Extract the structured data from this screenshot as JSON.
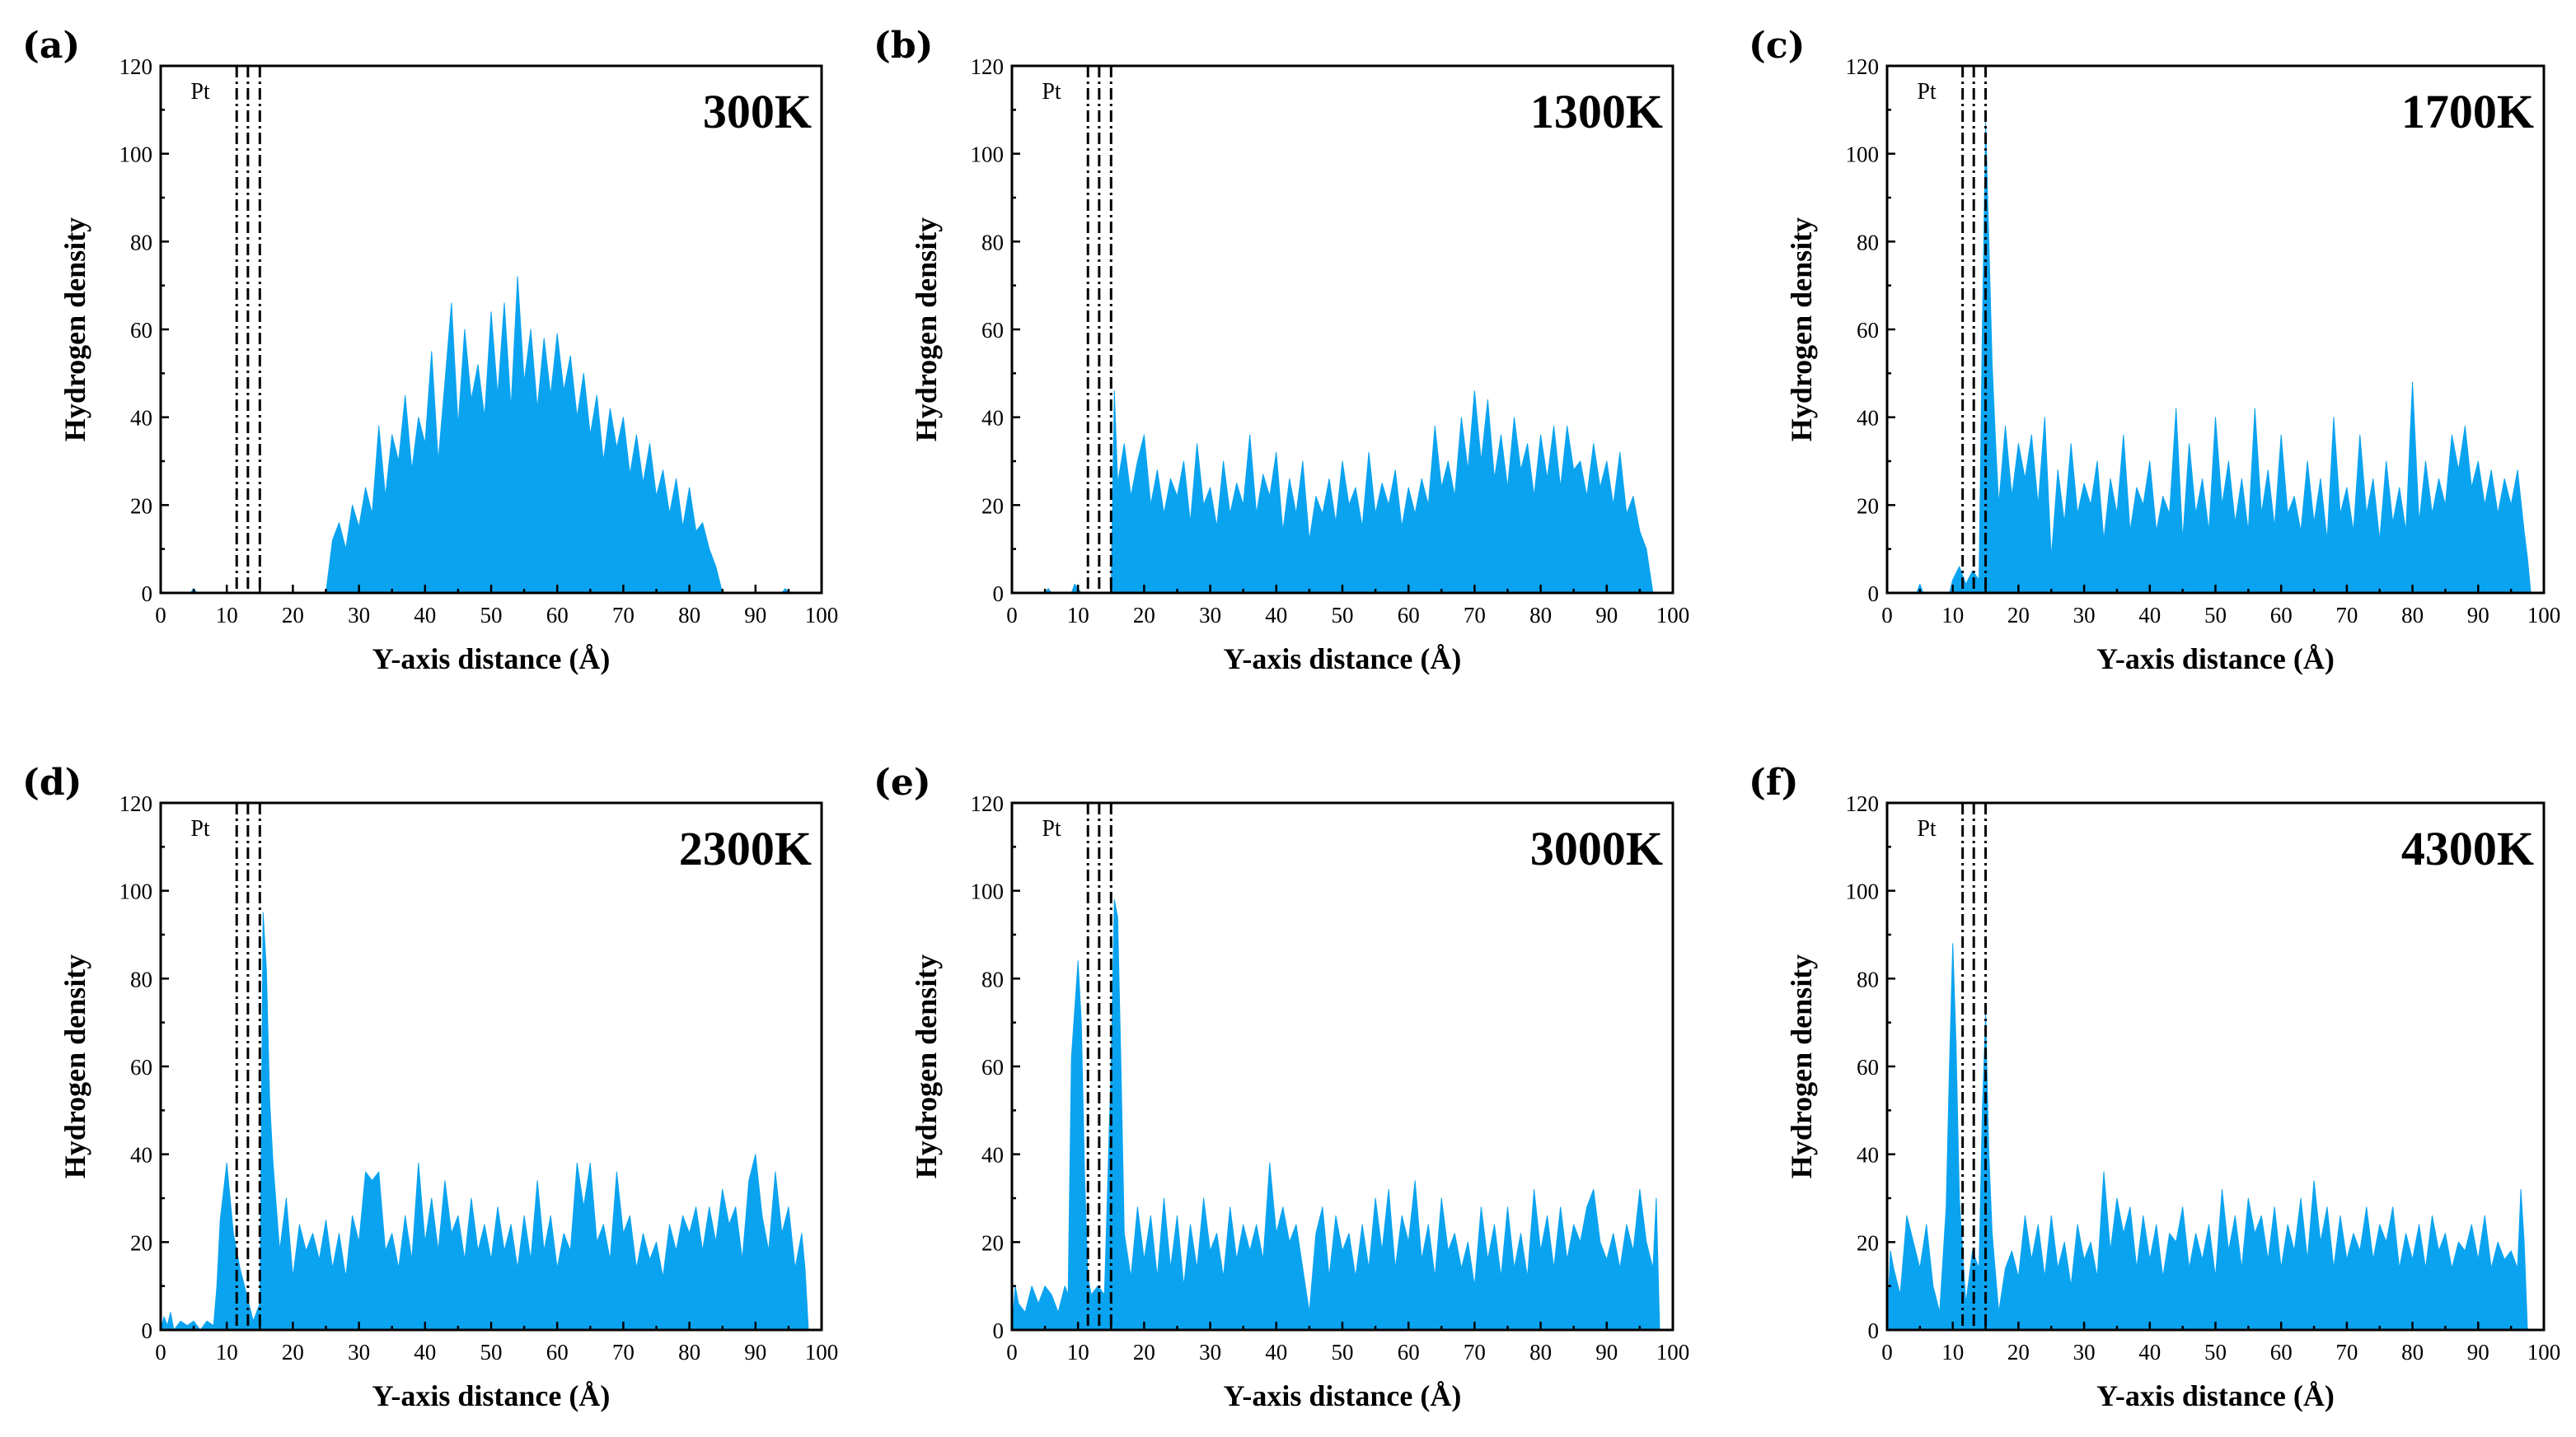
{
  "chart_data": [
    {
      "type": "area",
      "panel": "(a)",
      "temperature": "300K",
      "xlabel": "Y-axis distance (Å)",
      "ylabel": "Hydrogen density",
      "xlim": [
        0,
        100
      ],
      "ylim": [
        0,
        120
      ],
      "xticks": [
        0,
        10,
        20,
        30,
        40,
        50,
        60,
        70,
        80,
        90,
        100
      ],
      "yticks": [
        0,
        20,
        40,
        60,
        80,
        100,
        120
      ],
      "pt_label": "Pt",
      "pt_lines": [
        11.5,
        13.2,
        15
      ],
      "x": [
        0,
        4.5,
        5,
        5.5,
        10,
        25,
        26,
        27,
        28,
        29,
        30,
        31,
        32,
        33,
        34,
        35,
        36,
        37,
        38,
        39,
        40,
        41,
        42,
        43,
        44,
        45,
        46,
        47,
        48,
        49,
        50,
        51,
        52,
        53,
        54,
        55,
        56,
        57,
        58,
        59,
        60,
        61,
        62,
        63,
        64,
        65,
        66,
        67,
        68,
        69,
        70,
        71,
        72,
        73,
        74,
        75,
        76,
        77,
        78,
        79,
        80,
        81,
        82,
        83,
        84,
        85,
        90,
        94,
        94.5,
        95,
        100
      ],
      "values": [
        0,
        0,
        1,
        0,
        0,
        0,
        12,
        16,
        10,
        20,
        15,
        24,
        18,
        38,
        22,
        36,
        30,
        45,
        28,
        40,
        34,
        55,
        30,
        48,
        66,
        38,
        60,
        44,
        52,
        40,
        64,
        45,
        66,
        42,
        72,
        48,
        60,
        42,
        58,
        45,
        59,
        46,
        54,
        40,
        50,
        36,
        45,
        30,
        42,
        33,
        40,
        27,
        36,
        25,
        34,
        22,
        28,
        18,
        26,
        15,
        24,
        14,
        16,
        10,
        6,
        0,
        0,
        0,
        1,
        0,
        0
      ]
    },
    {
      "type": "area",
      "panel": "(b)",
      "temperature": "1300K",
      "xlabel": "Y-axis distance  (Å)",
      "ylabel": "Hydrogen density",
      "xlim": [
        0,
        100
      ],
      "ylim": [
        0,
        120
      ],
      "xticks": [
        0,
        10,
        20,
        30,
        40,
        50,
        60,
        70,
        80,
        90,
        100
      ],
      "yticks": [
        0,
        20,
        40,
        60,
        80,
        100,
        120
      ],
      "pt_label": "Pt",
      "pt_lines": [
        11.5,
        13.2,
        15
      ],
      "x": [
        0,
        5,
        5.5,
        6,
        9,
        9.5,
        10,
        10.5,
        15,
        15.5,
        16,
        17,
        18,
        19,
        20,
        21,
        22,
        23,
        24,
        25,
        26,
        27,
        28,
        29,
        30,
        31,
        32,
        33,
        34,
        35,
        36,
        37,
        38,
        39,
        40,
        41,
        42,
        43,
        44,
        45,
        46,
        47,
        48,
        49,
        50,
        51,
        52,
        53,
        54,
        55,
        56,
        57,
        58,
        59,
        60,
        61,
        62,
        63,
        64,
        65,
        66,
        67,
        68,
        69,
        70,
        71,
        72,
        73,
        74,
        75,
        76,
        77,
        78,
        79,
        80,
        81,
        82,
        83,
        84,
        85,
        86,
        87,
        88,
        89,
        90,
        91,
        92,
        93,
        94,
        95,
        96,
        97
      ],
      "values": [
        0,
        0,
        1,
        0,
        0,
        2,
        1,
        0,
        0,
        46,
        25,
        34,
        22,
        30,
        36,
        20,
        28,
        18,
        26,
        22,
        30,
        16,
        34,
        20,
        24,
        15,
        30,
        18,
        25,
        20,
        36,
        18,
        27,
        22,
        32,
        14,
        26,
        18,
        30,
        12,
        22,
        18,
        26,
        16,
        30,
        20,
        24,
        15,
        32,
        18,
        25,
        20,
        28,
        15,
        24,
        18,
        26,
        20,
        38,
        24,
        30,
        22,
        40,
        28,
        46,
        30,
        44,
        26,
        36,
        24,
        40,
        28,
        34,
        22,
        36,
        26,
        38,
        24,
        38,
        28,
        30,
        22,
        34,
        24,
        30,
        20,
        32,
        18,
        22,
        14,
        10,
        0
      ]
    },
    {
      "type": "area",
      "panel": "(c)",
      "temperature": "1700K",
      "xlabel": "Y-axis distance (Å)",
      "ylabel": "Hydrogen density",
      "xlim": [
        0,
        100
      ],
      "ylim": [
        0,
        120
      ],
      "xticks": [
        0,
        10,
        20,
        30,
        40,
        50,
        60,
        70,
        80,
        90,
        100
      ],
      "yticks": [
        0,
        20,
        40,
        60,
        80,
        100,
        120
      ],
      "pt_label": "Pt",
      "pt_lines": [
        11.5,
        13.2,
        15
      ],
      "x": [
        0,
        4.5,
        5,
        5.5,
        9.5,
        10,
        11,
        12,
        13,
        14,
        14.5,
        15,
        15.5,
        16,
        16.5,
        17,
        18,
        19,
        20,
        21,
        22,
        23,
        24,
        25,
        26,
        27,
        28,
        29,
        30,
        31,
        32,
        33,
        34,
        35,
        36,
        37,
        38,
        39,
        40,
        41,
        42,
        43,
        44,
        45,
        46,
        47,
        48,
        49,
        50,
        51,
        52,
        53,
        54,
        55,
        56,
        57,
        58,
        59,
        60,
        61,
        62,
        63,
        64,
        65,
        66,
        67,
        68,
        69,
        70,
        71,
        72,
        73,
        74,
        75,
        76,
        77,
        78,
        79,
        80,
        81,
        82,
        83,
        84,
        85,
        86,
        87,
        88,
        89,
        90,
        91,
        92,
        93,
        94,
        95,
        96,
        97,
        97.5,
        98
      ],
      "values": [
        0,
        0,
        2,
        0,
        0,
        3,
        6,
        2,
        5,
        3,
        60,
        107,
        80,
        52,
        35,
        20,
        38,
        22,
        34,
        26,
        36,
        20,
        40,
        8,
        28,
        16,
        34,
        18,
        25,
        20,
        30,
        12,
        26,
        18,
        36,
        14,
        24,
        20,
        30,
        14,
        22,
        18,
        42,
        12,
        34,
        18,
        26,
        14,
        40,
        20,
        30,
        16,
        26,
        14,
        42,
        18,
        28,
        15,
        36,
        18,
        22,
        14,
        30,
        16,
        26,
        12,
        40,
        18,
        24,
        14,
        36,
        18,
        26,
        12,
        30,
        16,
        24,
        14,
        48,
        16,
        30,
        18,
        26,
        20,
        36,
        28,
        38,
        24,
        30,
        20,
        28,
        18,
        26,
        20,
        28,
        14,
        8,
        0
      ]
    },
    {
      "type": "area",
      "panel": "(d)",
      "temperature": "2300K",
      "xlabel": "Y-axis distance (Å)",
      "ylabel": "Hydrogen density",
      "xlim": [
        0,
        100
      ],
      "ylim": [
        0,
        120
      ],
      "xticks": [
        0,
        10,
        20,
        30,
        40,
        50,
        60,
        70,
        80,
        90,
        100
      ],
      "yticks": [
        0,
        20,
        40,
        60,
        80,
        100,
        120
      ],
      "pt_label": "Pt",
      "pt_lines": [
        11.5,
        13.2,
        15
      ],
      "x": [
        0,
        0.5,
        1,
        1.5,
        2,
        3,
        4,
        5,
        6,
        7,
        8,
        8.5,
        9,
        10,
        11,
        12,
        13,
        14,
        15,
        15.5,
        16,
        16.5,
        17,
        18,
        19,
        20,
        21,
        22,
        23,
        24,
        25,
        26,
        27,
        28,
        29,
        30,
        31,
        32,
        33,
        34,
        35,
        36,
        37,
        38,
        39,
        40,
        41,
        42,
        43,
        44,
        45,
        46,
        47,
        48,
        49,
        50,
        51,
        52,
        53,
        54,
        55,
        56,
        57,
        58,
        59,
        60,
        61,
        62,
        63,
        64,
        65,
        66,
        67,
        68,
        69,
        70,
        71,
        72,
        73,
        74,
        75,
        76,
        77,
        78,
        79,
        80,
        81,
        82,
        83,
        84,
        85,
        86,
        87,
        88,
        89,
        90,
        91,
        92,
        93,
        94,
        95,
        96,
        97,
        97.5,
        98
      ],
      "values": [
        0,
        3,
        1,
        4,
        0,
        2,
        1,
        2,
        0,
        2,
        1,
        10,
        25,
        38,
        22,
        14,
        8,
        2,
        6,
        95,
        82,
        52,
        38,
        18,
        30,
        12,
        24,
        18,
        22,
        16,
        25,
        14,
        22,
        12,
        26,
        20,
        36,
        34,
        36,
        18,
        22,
        14,
        26,
        16,
        38,
        20,
        30,
        18,
        34,
        22,
        26,
        16,
        30,
        18,
        24,
        16,
        28,
        18,
        24,
        14,
        26,
        16,
        34,
        18,
        26,
        14,
        22,
        18,
        38,
        28,
        38,
        20,
        24,
        16,
        36,
        22,
        26,
        14,
        22,
        16,
        20,
        12,
        24,
        18,
        26,
        22,
        28,
        18,
        28,
        20,
        32,
        24,
        28,
        16,
        34,
        40,
        26,
        18,
        36,
        22,
        28,
        14,
        22,
        14,
        0
      ]
    },
    {
      "type": "area",
      "panel": "(e)",
      "temperature": "3000K",
      "xlabel": "Y-axis distance (Å)",
      "ylabel": "Hydrogen density",
      "xlim": [
        0,
        100
      ],
      "ylim": [
        0,
        120
      ],
      "xticks": [
        0,
        10,
        20,
        30,
        40,
        50,
        60,
        70,
        80,
        90,
        100
      ],
      "yticks": [
        0,
        20,
        40,
        60,
        80,
        100,
        120
      ],
      "pt_label": "Pt",
      "pt_lines": [
        11.5,
        13.2,
        15
      ],
      "x": [
        0,
        0.5,
        1,
        2,
        3,
        4,
        5,
        6,
        7,
        8,
        8.5,
        9,
        10,
        10.5,
        11,
        11.5,
        12,
        13,
        14,
        15,
        15.5,
        16,
        16.5,
        17,
        18,
        19,
        20,
        21,
        22,
        23,
        24,
        25,
        26,
        27,
        28,
        29,
        30,
        31,
        32,
        33,
        34,
        35,
        36,
        37,
        38,
        39,
        40,
        41,
        42,
        43,
        44,
        45,
        46,
        47,
        48,
        49,
        50,
        51,
        52,
        53,
        54,
        55,
        56,
        57,
        58,
        59,
        60,
        61,
        62,
        63,
        64,
        65,
        66,
        67,
        68,
        69,
        70,
        71,
        72,
        73,
        74,
        75,
        76,
        77,
        78,
        79,
        80,
        81,
        82,
        83,
        84,
        85,
        86,
        87,
        88,
        89,
        90,
        91,
        92,
        93,
        94,
        95,
        96,
        97,
        97.5,
        98
      ],
      "values": [
        0,
        10,
        6,
        4,
        10,
        6,
        10,
        8,
        4,
        10,
        8,
        62,
        84,
        70,
        35,
        12,
        8,
        10,
        8,
        60,
        98,
        94,
        60,
        22,
        12,
        28,
        16,
        26,
        12,
        30,
        14,
        26,
        10,
        24,
        14,
        30,
        18,
        22,
        12,
        28,
        16,
        24,
        18,
        24,
        16,
        38,
        22,
        28,
        20,
        24,
        14,
        4,
        22,
        28,
        12,
        26,
        18,
        22,
        12,
        24,
        14,
        30,
        18,
        32,
        14,
        26,
        20,
        34,
        16,
        24,
        12,
        30,
        18,
        22,
        14,
        20,
        10,
        28,
        16,
        24,
        12,
        28,
        14,
        22,
        12,
        32,
        18,
        26,
        14,
        28,
        16,
        24,
        20,
        28,
        32,
        20,
        16,
        22,
        14,
        24,
        18,
        32,
        20,
        14,
        30,
        0
      ]
    },
    {
      "type": "area",
      "panel": "(f)",
      "temperature": "4300K",
      "xlabel": "Y-axis distance (Å)",
      "ylabel": "Hydrogen density",
      "xlim": [
        0,
        100
      ],
      "ylim": [
        0,
        120
      ],
      "xticks": [
        0,
        10,
        20,
        30,
        40,
        50,
        60,
        70,
        80,
        90,
        100
      ],
      "yticks": [
        0,
        20,
        40,
        60,
        80,
        100,
        120
      ],
      "pt_label": "Pt",
      "pt_lines": [
        11.5,
        13.2,
        15
      ],
      "x": [
        0,
        0.5,
        1,
        2,
        3,
        4,
        5,
        6,
        7,
        8,
        9,
        9.5,
        10,
        10.5,
        11,
        12,
        13,
        14,
        14.5,
        15,
        15.5,
        16,
        17,
        18,
        19,
        20,
        21,
        22,
        23,
        24,
        25,
        26,
        27,
        28,
        29,
        30,
        31,
        32,
        33,
        34,
        35,
        36,
        37,
        38,
        39,
        40,
        41,
        42,
        43,
        44,
        45,
        46,
        47,
        48,
        49,
        50,
        51,
        52,
        53,
        54,
        55,
        56,
        57,
        58,
        59,
        60,
        61,
        62,
        63,
        64,
        65,
        66,
        67,
        68,
        69,
        70,
        71,
        72,
        73,
        74,
        75,
        76,
        77,
        78,
        79,
        80,
        81,
        82,
        83,
        84,
        85,
        86,
        87,
        88,
        89,
        90,
        91,
        92,
        93,
        94,
        95,
        96,
        96.5,
        97,
        97.5
      ],
      "values": [
        0,
        18,
        14,
        8,
        26,
        20,
        14,
        24,
        10,
        4,
        28,
        60,
        88,
        65,
        30,
        6,
        18,
        14,
        50,
        72,
        40,
        22,
        4,
        14,
        18,
        12,
        26,
        16,
        24,
        12,
        26,
        14,
        20,
        10,
        24,
        16,
        20,
        12,
        36,
        18,
        30,
        22,
        28,
        14,
        26,
        16,
        24,
        12,
        22,
        20,
        28,
        14,
        22,
        16,
        24,
        12,
        32,
        18,
        26,
        14,
        30,
        22,
        26,
        16,
        28,
        14,
        24,
        18,
        30,
        16,
        34,
        20,
        28,
        14,
        26,
        16,
        22,
        18,
        28,
        16,
        24,
        20,
        28,
        14,
        22,
        16,
        24,
        14,
        26,
        18,
        22,
        14,
        20,
        18,
        24,
        16,
        26,
        14,
        20,
        16,
        18,
        14,
        32,
        20,
        0
      ]
    }
  ]
}
